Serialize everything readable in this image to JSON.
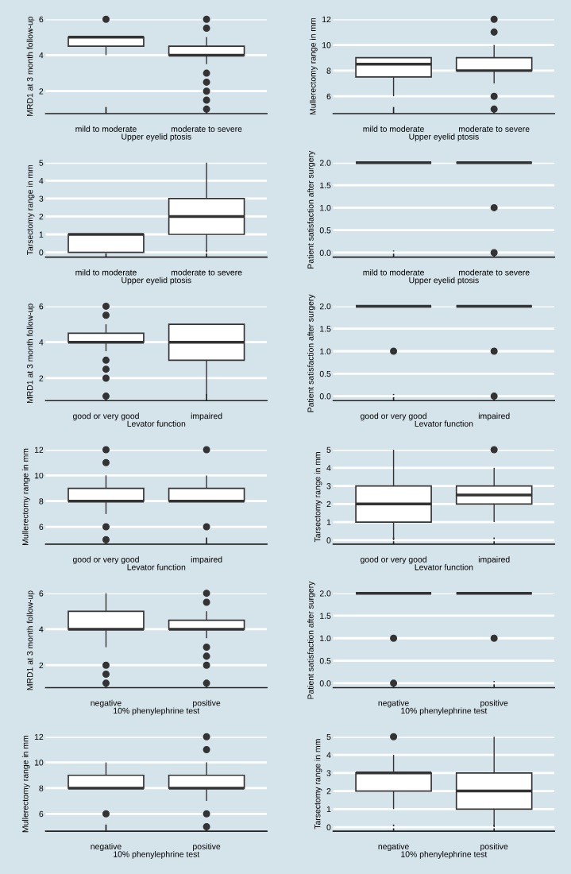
{
  "chart_data": [
    {
      "type": "box",
      "categories": [
        "mild to moderate",
        "moderate to severe"
      ],
      "xlabel": "Upper eyelid ptosis",
      "ylabel": "MRD1 at 3 month follow-up",
      "ylim": [
        0.75,
        6
      ],
      "yticks": [
        2,
        4,
        6
      ],
      "grid": "y",
      "boxes": [
        {
          "low": 4,
          "q1": 4.5,
          "median": 5,
          "q3": 5,
          "high": 5,
          "outliers": [
            6
          ]
        },
        {
          "low": 3.5,
          "q1": 4,
          "median": 4,
          "q3": 4.5,
          "high": 5,
          "outliers": [
            6,
            5.5,
            3,
            2.5,
            2,
            1.5,
            1
          ]
        }
      ]
    },
    {
      "type": "box",
      "categories": [
        "mild to moderate",
        "moderate to severe"
      ],
      "xlabel": "Upper eyelid ptosis",
      "ylabel": "Mullerectomy range in mm",
      "ylim": [
        4.65,
        12
      ],
      "yticks": [
        6,
        8,
        10,
        12
      ],
      "grid": "y",
      "boxes": [
        {
          "low": 6,
          "q1": 7.5,
          "median": 8.5,
          "q3": 9,
          "high": 9
        },
        {
          "low": 7,
          "q1": 8,
          "median": 8,
          "q3": 9,
          "high": 10,
          "outliers": [
            12,
            11,
            6,
            5
          ]
        }
      ]
    },
    {
      "type": "box",
      "categories": [
        "mild to moderate",
        "moderate to severe"
      ],
      "xlabel": "Upper eyelid ptosis",
      "ylabel": "Tarsectomy range in mm",
      "ylim": [
        -0.27,
        5
      ],
      "yticks": [
        0,
        1,
        2,
        3,
        4,
        5
      ],
      "grid": "y",
      "boxes": [
        {
          "low": 0,
          "q1": 0,
          "median": 1,
          "q3": 1,
          "high": 1
        },
        {
          "low": 0,
          "q1": 1,
          "median": 2,
          "q3": 3,
          "high": 5
        }
      ]
    },
    {
      "type": "box",
      "categories": [
        "mild to moderate",
        "moderate to severe"
      ],
      "xlabel": "Upper eyelid ptosis",
      "ylabel": "Patient satisfaction after surgery",
      "ylim": [
        -0.1,
        2
      ],
      "yticks": [
        {
          "value": 0,
          "label": "0.0"
        },
        {
          "value": 0.5,
          "label": "0.5"
        },
        {
          "value": 1,
          "label": "1.0"
        },
        {
          "value": 1.5,
          "label": "1.5"
        },
        {
          "value": 2,
          "label": "2.0"
        }
      ],
      "grid": "y",
      "boxes": [
        {
          "low": 2,
          "q1": 2,
          "median": 2,
          "q3": 2,
          "high": 2
        },
        {
          "low": 2,
          "q1": 2,
          "median": 2,
          "q3": 2,
          "high": 2,
          "outliers": [
            1,
            0
          ]
        }
      ]
    },
    {
      "type": "box",
      "categories": [
        "good or very good",
        "impaired"
      ],
      "xlabel": "Levator function",
      "ylabel": "MRD1 at 3 month follow-up",
      "ylim": [
        0.75,
        6
      ],
      "yticks": [
        2,
        4,
        6
      ],
      "grid": "y",
      "boxes": [
        {
          "low": 3.5,
          "q1": 4,
          "median": 4,
          "q3": 4.5,
          "high": 5,
          "outliers": [
            6,
            5.5,
            3,
            2.5,
            2,
            1
          ]
        },
        {
          "low": 1,
          "q1": 3,
          "median": 4,
          "q3": 5,
          "high": 5
        }
      ]
    },
    {
      "type": "box",
      "categories": [
        "good or very good",
        "impaired"
      ],
      "xlabel": "Levator function",
      "ylabel": "Patient satisfaction after surgery",
      "ylim": [
        -0.1,
        2
      ],
      "yticks": [
        {
          "value": 0,
          "label": "0.0"
        },
        {
          "value": 0.5,
          "label": "0.5"
        },
        {
          "value": 1,
          "label": "1.0"
        },
        {
          "value": 1.5,
          "label": "1.5"
        },
        {
          "value": 2,
          "label": "2.0"
        }
      ],
      "grid": "y",
      "boxes": [
        {
          "low": 2,
          "q1": 2,
          "median": 2,
          "q3": 2,
          "high": 2,
          "outliers": [
            1
          ]
        },
        {
          "low": 2,
          "q1": 2,
          "median": 2,
          "q3": 2,
          "high": 2,
          "outliers": [
            1,
            0
          ]
        }
      ]
    },
    {
      "type": "box",
      "categories": [
        "good or very good",
        "impaired"
      ],
      "xlabel": "Levator function",
      "ylabel": "Mullerectomy range in mm",
      "ylim": [
        4.65,
        12
      ],
      "yticks": [
        6,
        8,
        10,
        12
      ],
      "grid": "y",
      "boxes": [
        {
          "low": 7,
          "q1": 8,
          "median": 8,
          "q3": 9,
          "high": 10,
          "outliers": [
            12,
            11,
            6,
            5
          ]
        },
        {
          "low": 8,
          "q1": 8,
          "median": 8,
          "q3": 9,
          "high": 10,
          "outliers": [
            12,
            6
          ]
        }
      ]
    },
    {
      "type": "box",
      "categories": [
        "good or very good",
        "impaired"
      ],
      "xlabel": "Levator function",
      "ylabel": "Tarsectomy range in mm",
      "ylim": [
        -0.22,
        5
      ],
      "yticks": [
        0,
        1,
        2,
        3,
        4,
        5
      ],
      "grid": "y",
      "boxes": [
        {
          "low": 0,
          "q1": 1,
          "median": 2,
          "q3": 3,
          "high": 5
        },
        {
          "low": 1,
          "q1": 2,
          "median": 2.5,
          "q3": 3,
          "high": 4,
          "outliers": [
            5
          ]
        }
      ]
    },
    {
      "type": "box",
      "categories": [
        "negative",
        "positive"
      ],
      "xlabel": "10% phenylephrine test",
      "ylabel": "MRD1 at 3 month follow-up",
      "ylim": [
        0.75,
        6
      ],
      "yticks": [
        2,
        4,
        6
      ],
      "grid": "y",
      "boxes": [
        {
          "low": 3,
          "q1": 4,
          "median": 4,
          "q3": 5,
          "high": 6,
          "outliers": [
            2,
            1.5,
            1
          ]
        },
        {
          "low": 3.5,
          "q1": 4,
          "median": 4,
          "q3": 4.5,
          "high": 5,
          "outliers": [
            6,
            5.5,
            3,
            2.5,
            2,
            1
          ]
        }
      ]
    },
    {
      "type": "box",
      "categories": [
        "negative",
        "positive"
      ],
      "xlabel": "10% phenylephrine test",
      "ylabel": "Patient satisfaction after surgery",
      "ylim": [
        -0.1,
        2
      ],
      "yticks": [
        {
          "value": 0,
          "label": "0.0"
        },
        {
          "value": 0.5,
          "label": "0.5"
        },
        {
          "value": 1,
          "label": "1.0"
        },
        {
          "value": 1.5,
          "label": "1.5"
        },
        {
          "value": 2,
          "label": "2.0"
        }
      ],
      "grid": "y",
      "boxes": [
        {
          "low": 2,
          "q1": 2,
          "median": 2,
          "q3": 2,
          "high": 2,
          "outliers": [
            1,
            0
          ]
        },
        {
          "low": 2,
          "q1": 2,
          "median": 2,
          "q3": 2,
          "high": 2,
          "outliers": [
            1
          ]
        }
      ]
    },
    {
      "type": "box",
      "categories": [
        "negative",
        "positive"
      ],
      "xlabel": "10% phenylephrine test",
      "ylabel": "Mullerectomy range in mm",
      "ylim": [
        4.65,
        12
      ],
      "yticks": [
        6,
        8,
        10,
        12
      ],
      "grid": "y",
      "boxes": [
        {
          "low": 8,
          "q1": 8,
          "median": 8,
          "q3": 9,
          "high": 10,
          "outliers": [
            6
          ]
        },
        {
          "low": 7,
          "q1": 8,
          "median": 8,
          "q3": 9,
          "high": 10,
          "outliers": [
            12,
            11,
            6,
            5
          ]
        }
      ]
    },
    {
      "type": "box",
      "categories": [
        "negative",
        "positive"
      ],
      "xlabel": "10% phenylephrine test",
      "ylabel": "Tarsectomy range in mm",
      "ylim": [
        -0.22,
        5
      ],
      "yticks": [
        0,
        1,
        2,
        3,
        4,
        5
      ],
      "grid": "y",
      "boxes": [
        {
          "low": 1,
          "q1": 2,
          "median": 3,
          "q3": 3,
          "high": 4,
          "outliers": [
            5
          ]
        },
        {
          "low": 0,
          "q1": 1,
          "median": 2,
          "q3": 3,
          "high": 5
        }
      ]
    }
  ]
}
